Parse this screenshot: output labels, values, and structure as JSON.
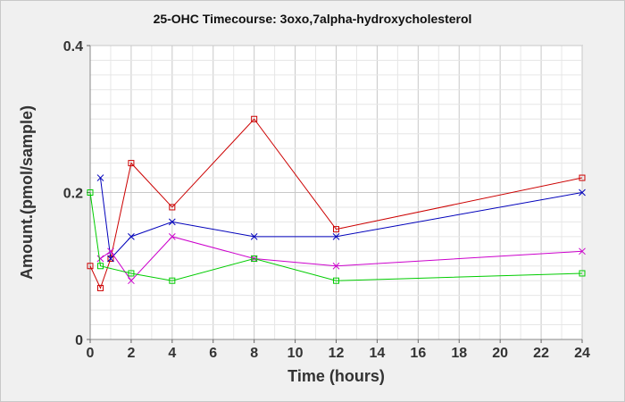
{
  "chart_data": {
    "type": "line",
    "title": "25-OHC Timecourse: 3oxo,7alpha-hydroxycholesterol",
    "xlabel": "Time (hours)",
    "ylabel": "Amount.(pmol/sample)",
    "xlim": [
      0,
      24
    ],
    "ylim": [
      0,
      0.4
    ],
    "x_ticks": [
      0,
      2,
      4,
      6,
      8,
      10,
      12,
      14,
      16,
      18,
      20,
      22,
      24
    ],
    "x_tick_labels": [
      "0",
      "2",
      "4",
      "6",
      "8",
      "10",
      "12",
      "14",
      "16",
      "18",
      "20",
      "22",
      "24"
    ],
    "y_ticks": [
      0,
      0.2,
      0.4
    ],
    "y_tick_labels": [
      "0",
      "0.2",
      "0.4"
    ],
    "grid": true,
    "series": [
      {
        "color": "#cc0000",
        "marker": "square",
        "x": [
          0,
          0.5,
          1,
          2,
          4,
          8,
          12,
          24
        ],
        "y": [
          0.1,
          0.07,
          0.11,
          0.24,
          0.18,
          0.3,
          0.15,
          0.22
        ]
      },
      {
        "color": "#0000bb",
        "marker": "x",
        "x": [
          0.5,
          1,
          2,
          4,
          8,
          12,
          24
        ],
        "y": [
          0.22,
          0.11,
          0.14,
          0.16,
          0.14,
          0.14,
          0.2
        ]
      },
      {
        "color": "#cc00cc",
        "marker": "x",
        "x": [
          0.5,
          1,
          2,
          4,
          8,
          12,
          24
        ],
        "y": [
          0.11,
          0.12,
          0.08,
          0.14,
          0.11,
          0.1,
          0.12
        ]
      },
      {
        "color": "#00cc00",
        "marker": "square",
        "x": [
          0,
          0.5,
          2,
          4,
          8,
          12,
          24
        ],
        "y": [
          0.2,
          0.1,
          0.09,
          0.08,
          0.11,
          0.08,
          0.09
        ]
      }
    ]
  }
}
